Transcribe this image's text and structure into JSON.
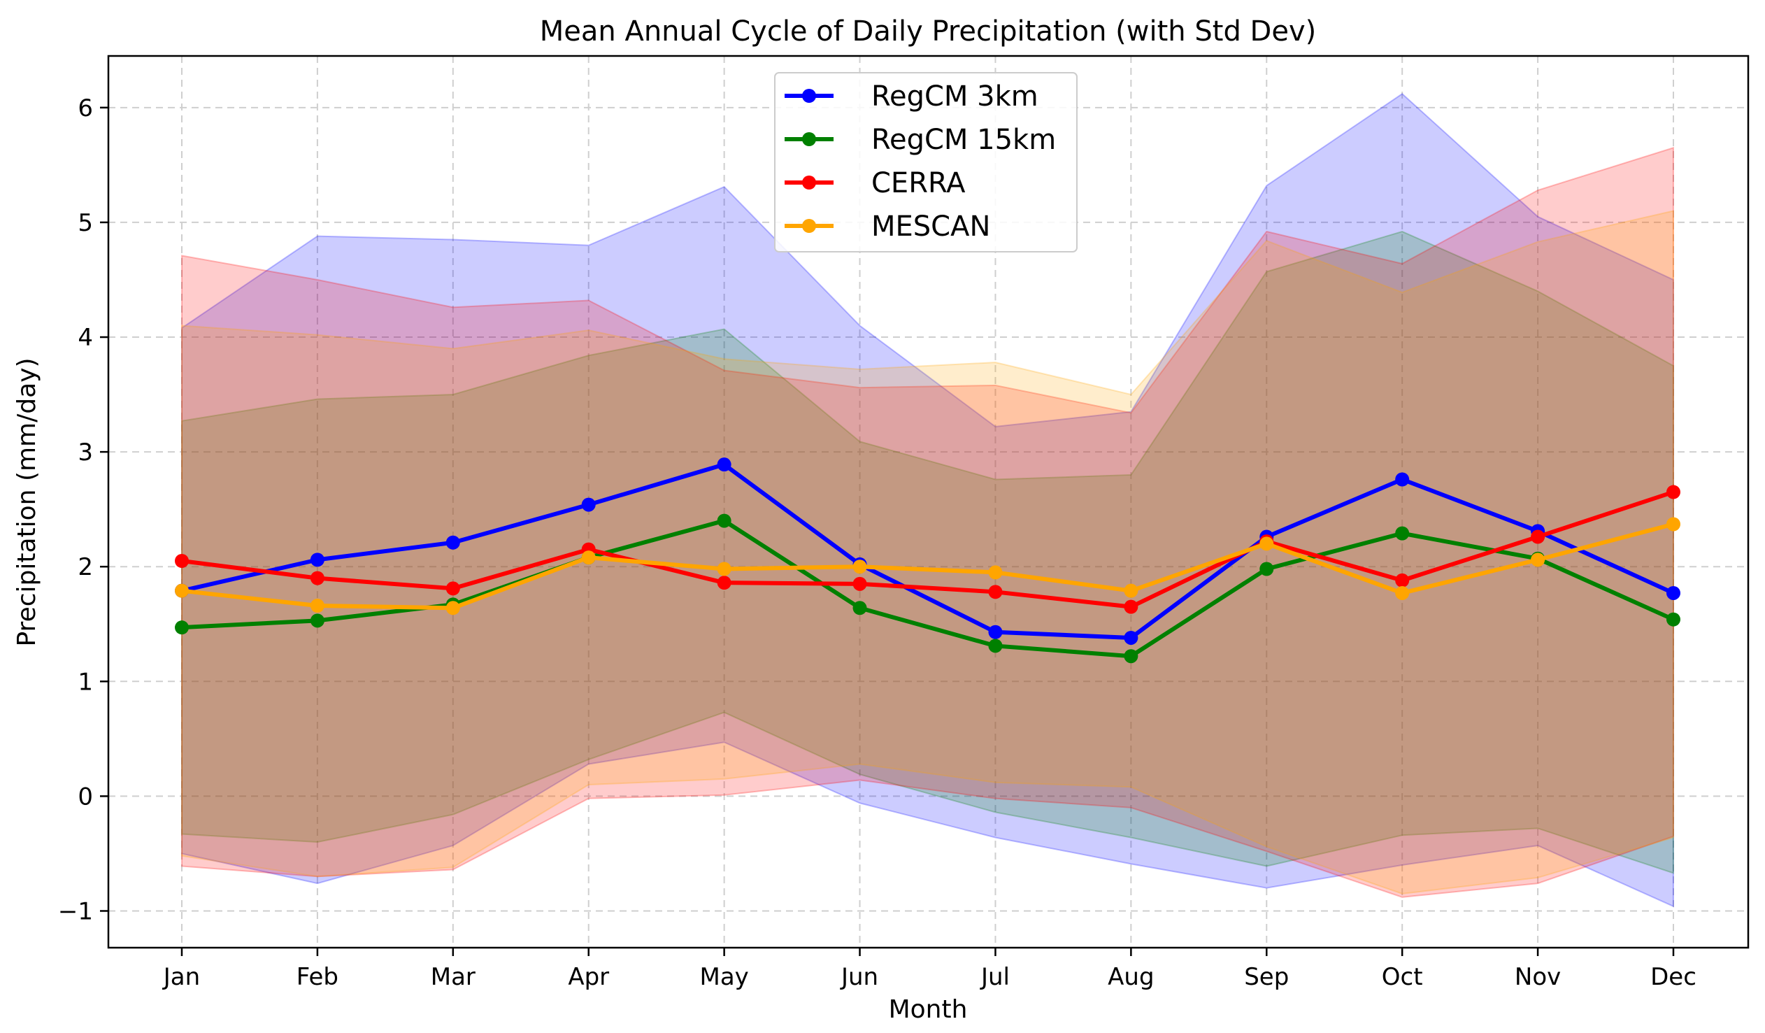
{
  "chart_data": {
    "type": "line",
    "title": "Mean Annual Cycle of Daily Precipitation (with Std Dev)",
    "xlabel": "Month",
    "ylabel": "Precipitation (mm/day)",
    "categories": [
      "Jan",
      "Feb",
      "Mar",
      "Apr",
      "May",
      "Jun",
      "Jul",
      "Aug",
      "Sep",
      "Oct",
      "Nov",
      "Dec"
    ],
    "yticks": [
      -1,
      0,
      1,
      2,
      3,
      4,
      5,
      6
    ],
    "ytick_labels": [
      "−1",
      "0",
      "1",
      "2",
      "3",
      "4",
      "5",
      "6"
    ],
    "ylim": [
      -1.32,
      6.45
    ],
    "grid": true,
    "legend_position": "top-center",
    "series": [
      {
        "name": "RegCM 3km",
        "color": "#0000ff",
        "values": [
          1.79,
          2.06,
          2.21,
          2.54,
          2.89,
          2.02,
          1.43,
          1.38,
          2.26,
          2.76,
          2.31,
          1.77
        ],
        "std_upper": [
          4.08,
          4.88,
          4.85,
          4.8,
          5.31,
          4.1,
          3.22,
          3.35,
          5.32,
          6.12,
          5.05,
          4.5
        ],
        "std_lower": [
          -0.5,
          -0.76,
          -0.43,
          0.28,
          0.47,
          -0.06,
          -0.36,
          -0.59,
          -0.8,
          -0.6,
          -0.43,
          -0.96
        ]
      },
      {
        "name": "RegCM 15km",
        "color": "#008000",
        "values": [
          1.47,
          1.53,
          1.67,
          2.08,
          2.4,
          1.64,
          1.31,
          1.22,
          1.98,
          2.29,
          2.07,
          1.54
        ],
        "std_upper": [
          3.27,
          3.46,
          3.5,
          3.84,
          4.07,
          3.09,
          2.76,
          2.8,
          4.57,
          4.92,
          4.4,
          3.75
        ],
        "std_lower": [
          -0.33,
          -0.4,
          -0.16,
          0.32,
          0.73,
          0.19,
          -0.14,
          -0.36,
          -0.61,
          -0.34,
          -0.28,
          -0.67
        ]
      },
      {
        "name": "CERRA",
        "color": "#ff0000",
        "values": [
          2.05,
          1.9,
          1.81,
          2.15,
          1.86,
          1.85,
          1.78,
          1.65,
          2.22,
          1.88,
          2.26,
          2.65
        ],
        "std_upper": [
          4.71,
          4.5,
          4.26,
          4.32,
          3.71,
          3.56,
          3.58,
          3.34,
          4.92,
          4.64,
          5.28,
          5.65
        ],
        "std_lower": [
          -0.61,
          -0.7,
          -0.64,
          -0.02,
          0.01,
          0.14,
          -0.02,
          -0.1,
          -0.48,
          -0.88,
          -0.76,
          -0.35
        ]
      },
      {
        "name": "MESCAN",
        "color": "#ffa500",
        "values": [
          1.79,
          1.66,
          1.64,
          2.08,
          1.98,
          2.0,
          1.95,
          1.79,
          2.2,
          1.77,
          2.06,
          2.37
        ],
        "std_upper": [
          4.1,
          4.02,
          3.9,
          4.06,
          3.81,
          3.72,
          3.78,
          3.5,
          4.84,
          4.39,
          4.83,
          5.1
        ],
        "std_lower": [
          -0.52,
          -0.7,
          -0.62,
          0.1,
          0.15,
          0.28,
          0.12,
          0.08,
          -0.44,
          -0.85,
          -0.71,
          -0.36
        ]
      }
    ]
  }
}
